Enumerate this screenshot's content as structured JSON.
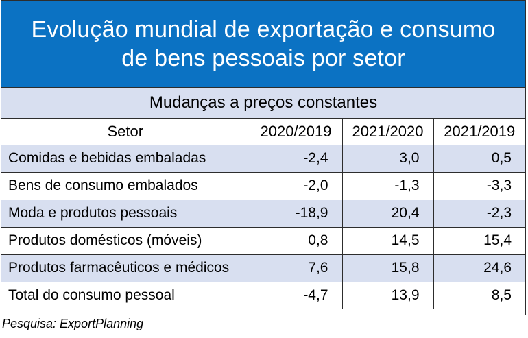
{
  "chart_data": {
    "type": "table",
    "title": [
      "Evolução mundial de exportação e consumo",
      "de bens pessoais por setor"
    ],
    "subtitle": "Mudanças a preços constantes",
    "columns": [
      "Setor",
      "2020/2019",
      "2021/2020",
      "2021/2019"
    ],
    "rows": [
      [
        "Comidas e bebidas embaladas",
        "-2,4",
        "3,0",
        "0,5"
      ],
      [
        "Bens de consumo embalados",
        "-2,0",
        "-1,3",
        "-3,3"
      ],
      [
        "Moda e produtos pessoais",
        "-18,9",
        "20,4",
        "-2,3"
      ],
      [
        "Produtos domésticos (móveis)",
        "0,8",
        "14,5",
        "15,4"
      ],
      [
        "Produtos farmacêuticos e médicos",
        "7,6",
        "15,8",
        "24,6"
      ],
      [
        "Total do consumo pessoal",
        "-4,7",
        "13,9",
        "8,5"
      ]
    ],
    "source": "Pesquisa: ExportPlanning",
    "colors": {
      "title_bg": "#0b72c3",
      "shade": "#d8dff0"
    }
  }
}
